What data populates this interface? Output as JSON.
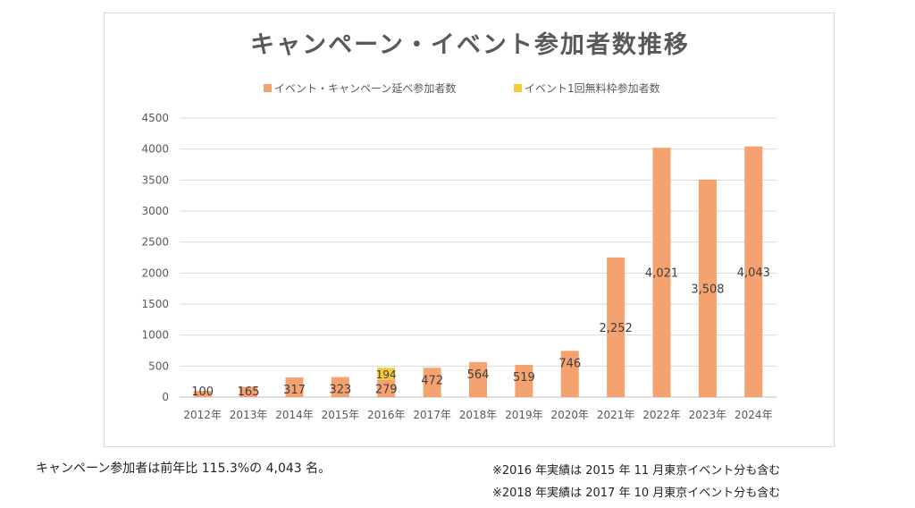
{
  "chart_data": {
    "type": "bar",
    "title": "キャンペーン・イベント参加者数推移",
    "categories": [
      "2012年",
      "2013年",
      "2014年",
      "2015年",
      "2016年",
      "2017年",
      "2018年",
      "2019年",
      "2020年",
      "2021年",
      "2022年",
      "2023年",
      "2024年"
    ],
    "series": [
      {
        "name": "イベント・キャンペーン延べ参加者数",
        "color": "#F4A26F",
        "values": [
          100,
          165,
          317,
          323,
          279,
          472,
          564,
          519,
          746,
          2252,
          4021,
          3508,
          4043
        ],
        "labels": [
          "100",
          "165",
          "317",
          "323",
          "279",
          "472",
          "564",
          "519",
          "746",
          "2,252",
          "4,021",
          "3,508",
          "4,043"
        ]
      },
      {
        "name": "イベント1回無料枠参加者数",
        "color": "#F7C934",
        "values": [
          null,
          null,
          null,
          null,
          194,
          null,
          null,
          null,
          null,
          null,
          null,
          null,
          null
        ],
        "labels": [
          "",
          "",
          "",
          "",
          "194",
          "",
          "",
          "",
          "",
          "",
          "",
          "",
          ""
        ]
      }
    ],
    "stacked": true,
    "ylim": [
      0,
      4500
    ],
    "yticks": [
      0,
      500,
      1000,
      1500,
      2000,
      2500,
      3000,
      3500,
      4000,
      4500
    ],
    "grid": true,
    "legend_position": "top"
  },
  "summary": "キャンペーン参加者は前年比 115.3%の 4,043 名。",
  "notes": [
    "※2016 年実績は 2015 年 11 月東京イベント分も含む",
    "※2018 年実績は 2017 年 10 月東京イベント分も含む"
  ]
}
